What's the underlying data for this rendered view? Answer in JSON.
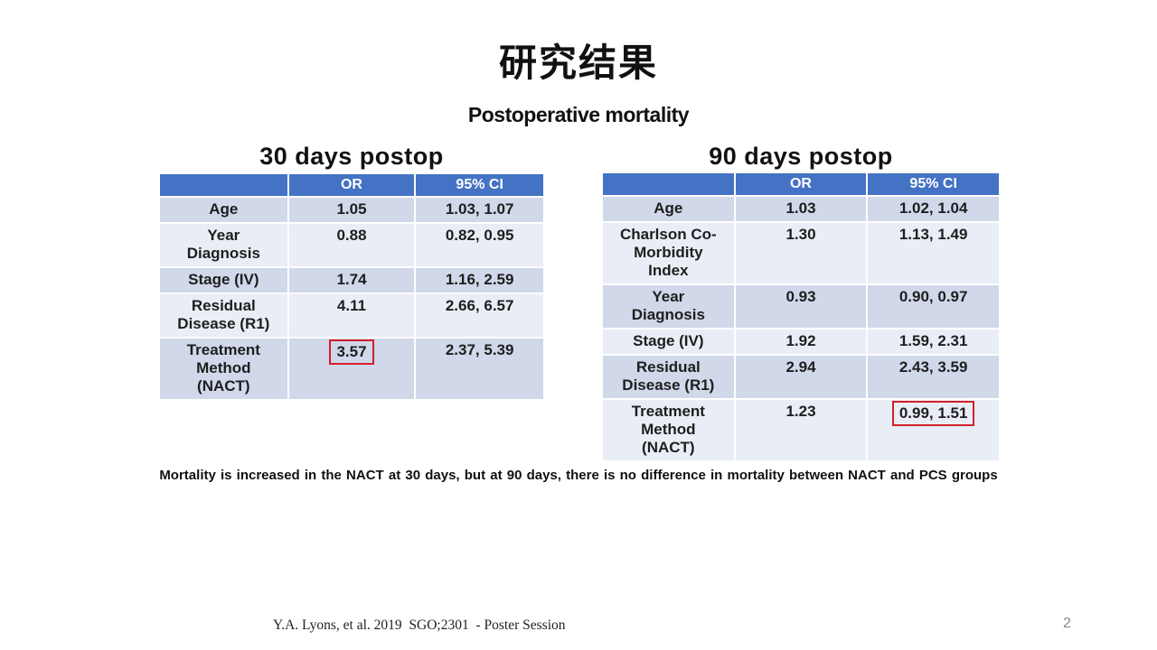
{
  "slide": {
    "title": "研究结果",
    "subtitle": "Postoperative mortality",
    "note": "Mortality is increased in the NACT  at 30 days, but at 90 days, there is  no difference in mortality between NACT and PCS groups",
    "citation": "Y.A. Lyons, et al. 2019  SGO;2301  - Poster Session",
    "page_number": "2"
  },
  "table_30": {
    "heading": "30 days postop",
    "headers": [
      "",
      "OR",
      "95% CI"
    ],
    "rows": [
      {
        "label": "Age",
        "or": "1.05",
        "ci": "1.03, 1.07"
      },
      {
        "label": "Year Diagnosis",
        "or": "0.88",
        "ci": "0.82, 0.95"
      },
      {
        "label": "Stage (IV)",
        "or": "1.74",
        "ci": "1.16, 2.59"
      },
      {
        "label": "Residual Disease (R1)",
        "or": "4.11",
        "ci": "2.66, 6.57"
      },
      {
        "label": "Treatment Method (NACT)",
        "or": "3.57",
        "ci": "2.37, 5.39"
      }
    ],
    "highlighted": "3.57"
  },
  "table_90": {
    "heading": "90 days postop",
    "headers": [
      "",
      "OR",
      "95% CI"
    ],
    "rows": [
      {
        "label": "Age",
        "or": "1.03",
        "ci": "1.02, 1.04"
      },
      {
        "label": "Charlson Co-Morbidity Index",
        "or": "1.30",
        "ci": "1.13, 1.49"
      },
      {
        "label": "Year Diagnosis",
        "or": "0.93",
        "ci": "0.90, 0.97"
      },
      {
        "label": "Stage (IV)",
        "or": "1.92",
        "ci": "1.59, 2.31"
      },
      {
        "label": "Residual Disease (R1)",
        "or": "2.94",
        "ci": "2.43, 3.59"
      },
      {
        "label": "Treatment Method (NACT)",
        "or": "1.23",
        "ci": "0.99, 1.51"
      }
    ],
    "highlighted": "0.99, 1.51"
  },
  "colors": {
    "header_blue": "#4472c4",
    "row_dark": "#d0d8ea",
    "row_light": "#e9edf5",
    "highlight_red": "#d21f2b"
  }
}
